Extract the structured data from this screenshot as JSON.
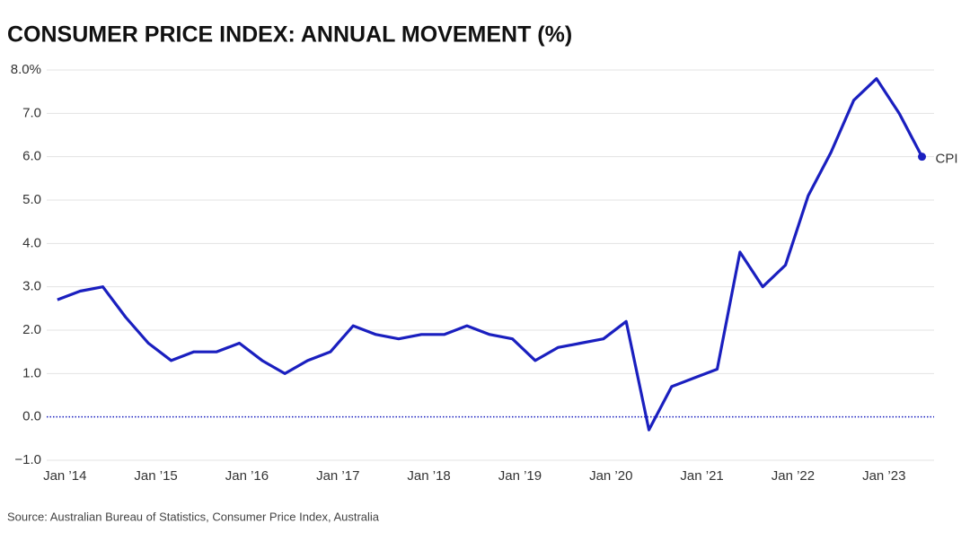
{
  "chart_data": {
    "type": "line",
    "title": "CONSUMER PRICE INDEX: ANNUAL MOVEMENT (%)",
    "source": "Source: Australian Bureau of Statistics, Consumer Price Index, Australia",
    "x": [
      2013.917,
      2014.167,
      2014.417,
      2014.667,
      2014.917,
      2015.167,
      2015.417,
      2015.667,
      2015.917,
      2016.167,
      2016.417,
      2016.667,
      2016.917,
      2017.167,
      2017.417,
      2017.667,
      2017.917,
      2018.167,
      2018.417,
      2018.667,
      2018.917,
      2019.167,
      2019.417,
      2019.667,
      2019.917,
      2020.167,
      2020.417,
      2020.667,
      2020.917,
      2021.167,
      2021.417,
      2021.667,
      2021.917,
      2022.167,
      2022.417,
      2022.667,
      2022.917,
      2023.167,
      2023.417
    ],
    "series": [
      {
        "name": "CPI",
        "color": "#1a1fbf",
        "values": [
          2.7,
          2.9,
          3.0,
          2.3,
          1.7,
          1.3,
          1.5,
          1.5,
          1.7,
          1.3,
          1.0,
          1.3,
          1.5,
          2.1,
          1.9,
          1.8,
          1.9,
          1.9,
          2.1,
          1.9,
          1.8,
          1.3,
          1.6,
          1.7,
          1.8,
          2.2,
          -0.3,
          0.7,
          0.9,
          1.1,
          3.8,
          3.0,
          3.5,
          5.1,
          6.1,
          7.3,
          7.8,
          7.0,
          6.0
        ]
      }
    ],
    "xlim": [
      2013.8,
      2023.55
    ],
    "xticks": [
      {
        "value": 2014,
        "label": "Jan ’14"
      },
      {
        "value": 2015,
        "label": "Jan ’15"
      },
      {
        "value": 2016,
        "label": "Jan ’16"
      },
      {
        "value": 2017,
        "label": "Jan ’17"
      },
      {
        "value": 2018,
        "label": "Jan ’18"
      },
      {
        "value": 2019,
        "label": "Jan ’19"
      },
      {
        "value": 2020,
        "label": "Jan ’20"
      },
      {
        "value": 2021,
        "label": "Jan ’21"
      },
      {
        "value": 2022,
        "label": "Jan ’22"
      },
      {
        "value": 2023,
        "label": "Jan ’23"
      }
    ],
    "ylim": [
      -1,
      8
    ],
    "yticks": [
      {
        "value": -1,
        "label": "−1.0"
      },
      {
        "value": 0,
        "label": "0.0"
      },
      {
        "value": 1,
        "label": "1.0"
      },
      {
        "value": 2,
        "label": "2.0"
      },
      {
        "value": 3,
        "label": "3.0"
      },
      {
        "value": 4,
        "label": "4.0"
      },
      {
        "value": 5,
        "label": "5.0"
      },
      {
        "value": 6,
        "label": "6.0"
      },
      {
        "value": 7,
        "label": "7.0"
      },
      {
        "value": 8,
        "label": "8.0%"
      }
    ],
    "grid": true
  }
}
